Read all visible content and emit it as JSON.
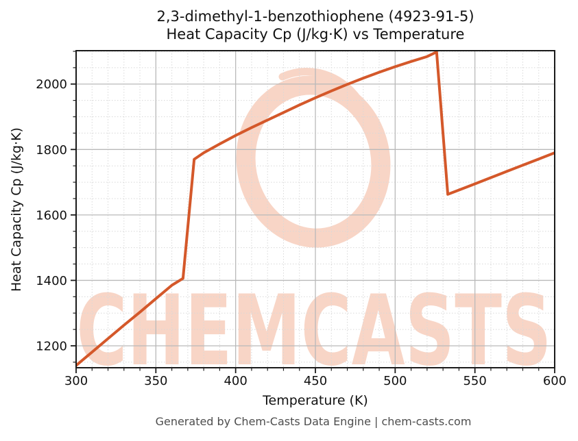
{
  "header": {
    "title_line1": "2,3-dimethyl-1-benzothiophene (4923-91-5)",
    "title_line2": "Heat Capacity Cp (J/kg·K) vs Temperature"
  },
  "footer": {
    "text": "Generated by Chem-Casts Data Engine | chem-casts.com"
  },
  "watermark": {
    "text": "CHEMCASTS",
    "color": "#f8d5c6"
  },
  "chart_data": {
    "type": "line",
    "title": "2,3-dimethyl-1-benzothiophene (4923-91-5)",
    "subtitle": "Heat Capacity Cp (J/kg·K) vs Temperature",
    "xlabel": "Temperature (K)",
    "ylabel": "Heat Capacity Cp (J/kg·K)",
    "xlim": [
      300,
      600
    ],
    "ylim": [
      1133,
      2102
    ],
    "x_ticks": [
      300,
      350,
      400,
      450,
      500,
      550,
      600
    ],
    "y_ticks": [
      1200,
      1400,
      1600,
      1800,
      2000
    ],
    "x_minor_step": 10,
    "y_minor_step": 50,
    "grid": true,
    "legend": "none",
    "line_color": "#d4582a",
    "major_grid_color": "#b9b9b9",
    "minor_grid_color": "#d8d8d8",
    "series": [
      {
        "name": "Heat Capacity Cp",
        "points": [
          [
            300,
            1140
          ],
          [
            310,
            1181
          ],
          [
            320,
            1222
          ],
          [
            330,
            1263
          ],
          [
            340,
            1303
          ],
          [
            350,
            1344
          ],
          [
            360,
            1385
          ],
          [
            367,
            1406
          ],
          [
            374,
            1770
          ],
          [
            380,
            1790
          ],
          [
            390,
            1817
          ],
          [
            400,
            1843
          ],
          [
            410,
            1867
          ],
          [
            420,
            1890
          ],
          [
            430,
            1913
          ],
          [
            440,
            1936
          ],
          [
            450,
            1958
          ],
          [
            460,
            1979
          ],
          [
            470,
            1999
          ],
          [
            480,
            2018
          ],
          [
            490,
            2036
          ],
          [
            500,
            2053
          ],
          [
            510,
            2069
          ],
          [
            520,
            2084
          ],
          [
            526,
            2098
          ],
          [
            533,
            1663
          ],
          [
            540,
            1676
          ],
          [
            550,
            1695
          ],
          [
            560,
            1714
          ],
          [
            570,
            1733
          ],
          [
            580,
            1752
          ],
          [
            590,
            1771
          ],
          [
            600,
            1790
          ]
        ]
      }
    ]
  }
}
